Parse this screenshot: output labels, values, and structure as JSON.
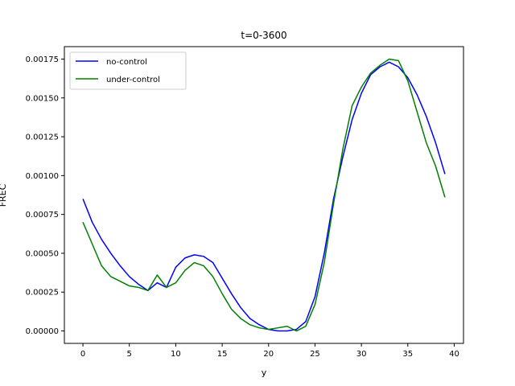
{
  "chart_data": {
    "type": "line",
    "title": "t=0-3600",
    "xlabel": "y",
    "ylabel": "FREC",
    "xlim": [
      -2,
      41
    ],
    "ylim": [
      -8e-05,
      0.00183
    ],
    "xticks": [
      0,
      5,
      10,
      15,
      20,
      25,
      30,
      35,
      40
    ],
    "xtick_labels": [
      "0",
      "5",
      "10",
      "15",
      "20",
      "25",
      "30",
      "35",
      "40"
    ],
    "yticks": [
      0,
      0.00025,
      0.0005,
      0.00075,
      0.001,
      0.00125,
      0.0015,
      0.00175
    ],
    "ytick_labels": [
      "0.00000",
      "0.00025",
      "0.00050",
      "0.00075",
      "0.00100",
      "0.00125",
      "0.00150",
      "0.00175"
    ],
    "grid": false,
    "legend_position": "top-left",
    "series": [
      {
        "name": "no-control",
        "color": "#0000ff",
        "x": [
          0,
          1,
          2,
          3,
          4,
          5,
          6,
          7,
          8,
          9,
          10,
          11,
          12,
          13,
          14,
          15,
          16,
          17,
          18,
          19,
          20,
          21,
          22,
          23,
          24,
          25,
          26,
          27,
          28,
          29,
          30,
          31,
          32,
          33,
          34,
          35,
          36,
          37,
          38,
          39
        ],
        "values": [
          0.00085,
          0.0007,
          0.00059,
          0.0005,
          0.00042,
          0.00035,
          0.0003,
          0.00026,
          0.00031,
          0.00028,
          0.00041,
          0.00047,
          0.00049,
          0.00048,
          0.00044,
          0.00034,
          0.00024,
          0.00015,
          8e-05,
          4e-05,
          1e-05,
          0.0,
          0.0,
          1e-05,
          6e-05,
          0.00022,
          0.0005,
          0.00085,
          0.00112,
          0.00136,
          0.00153,
          0.00165,
          0.0017,
          0.00173,
          0.0017,
          0.00163,
          0.00152,
          0.00138,
          0.00121,
          0.00101
        ]
      },
      {
        "name": "under-control",
        "color": "#008000",
        "x": [
          0,
          1,
          2,
          3,
          4,
          5,
          6,
          7,
          8,
          9,
          10,
          11,
          12,
          13,
          14,
          15,
          16,
          17,
          18,
          19,
          20,
          21,
          22,
          23,
          24,
          25,
          26,
          27,
          28,
          29,
          30,
          31,
          32,
          33,
          34,
          35,
          36,
          37,
          38,
          39
        ],
        "values": [
          0.0007,
          0.00056,
          0.00042,
          0.00035,
          0.00032,
          0.00029,
          0.00028,
          0.00026,
          0.00036,
          0.00028,
          0.00031,
          0.00039,
          0.00044,
          0.00042,
          0.00035,
          0.00024,
          0.00014,
          8e-05,
          4e-05,
          2e-05,
          1e-05,
          2e-05,
          3e-05,
          0.0,
          3e-05,
          0.00017,
          0.00044,
          0.00082,
          0.00117,
          0.00145,
          0.00157,
          0.00166,
          0.00171,
          0.00175,
          0.00174,
          0.00161,
          0.00141,
          0.00121,
          0.00106,
          0.00086
        ]
      }
    ]
  }
}
